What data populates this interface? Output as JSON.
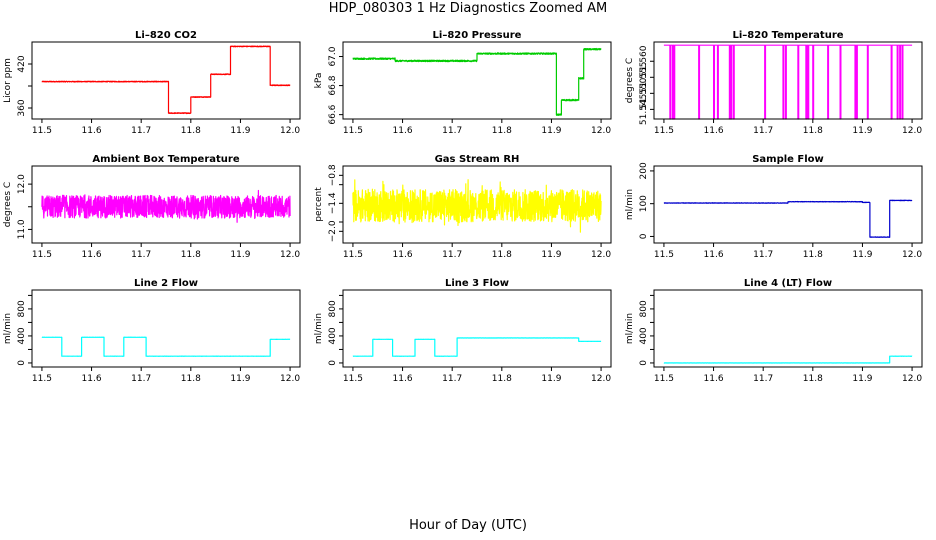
{
  "figure": {
    "title": "HDP_080303  1 Hz Diagnostics Zoomed AM",
    "xlabel": "Hour of Day (UTC)"
  },
  "chart_data": [
    {
      "type": "line",
      "title": "Li–820 CO2",
      "ylabel": "Licor ppm",
      "color": "#ff0000",
      "xlim": [
        11.48,
        12.02
      ],
      "xticks": [
        11.5,
        11.6,
        11.7,
        11.8,
        11.9,
        12.0
      ],
      "ylim": [
        345,
        450
      ],
      "yticks": [
        360,
        390,
        420
      ],
      "ytick_labels": [
        "360",
        "",
        "420"
      ],
      "noise": 0.5,
      "segments": [
        [
          11.5,
          11.755,
          396
        ],
        [
          11.755,
          11.8,
          353
        ],
        [
          11.8,
          11.84,
          375
        ],
        [
          11.84,
          11.88,
          406
        ],
        [
          11.88,
          11.96,
          444
        ],
        [
          11.96,
          12.0,
          391
        ]
      ]
    },
    {
      "type": "line",
      "title": "Li–820 Pressure",
      "ylabel": "kPa",
      "color": "#00cc00",
      "xlim": [
        11.48,
        12.02
      ],
      "xticks": [
        11.5,
        11.6,
        11.7,
        11.8,
        11.9,
        12.0
      ],
      "ylim": [
        66.57,
        67.1
      ],
      "yticks": [
        66.6,
        66.8,
        67.0
      ],
      "ytick_labels": [
        "66.6",
        "66.8",
        "67.0"
      ],
      "noise": 0.005,
      "segments": [
        [
          11.5,
          11.585,
          66.985
        ],
        [
          11.585,
          11.75,
          66.97
        ],
        [
          11.75,
          11.91,
          67.02
        ],
        [
          11.91,
          11.92,
          66.6
        ],
        [
          11.92,
          11.955,
          66.7
        ],
        [
          11.955,
          11.965,
          66.85
        ],
        [
          11.965,
          12.0,
          67.05
        ]
      ]
    },
    {
      "type": "line",
      "title": "Li–820 Temperature",
      "ylabel": "degrees C",
      "color": "#ff00ff",
      "xlim": [
        11.48,
        12.02
      ],
      "xticks": [
        11.5,
        11.6,
        11.7,
        11.8,
        11.9,
        12.0
      ],
      "ylim": [
        51.542,
        51.566
      ],
      "yticks": [
        51.545,
        51.55,
        51.555,
        51.56
      ],
      "ytick_labels": [
        "51.545",
        "51.550",
        "51.555",
        "51.560"
      ],
      "base": 51.565,
      "low": 51.542,
      "spikes": [
        11.512,
        11.517,
        11.52,
        11.57,
        11.6,
        11.608,
        11.632,
        11.635,
        11.64,
        11.703,
        11.74,
        11.745,
        11.77,
        11.786,
        11.79,
        11.8,
        11.83,
        11.855,
        11.885,
        11.888,
        11.91,
        11.958,
        11.97,
        11.975,
        11.98
      ]
    },
    {
      "type": "line",
      "title": "Ambient Box Temperature",
      "ylabel": "degrees C",
      "color": "#ff00ff",
      "xlim": [
        11.48,
        12.02
      ],
      "xticks": [
        11.5,
        11.6,
        11.7,
        11.8,
        11.9,
        12.0
      ],
      "ylim": [
        10.7,
        12.4
      ],
      "yticks": [
        11.0,
        11.5,
        12.0
      ],
      "ytick_labels": [
        "11.0",
        "",
        "12.0"
      ],
      "noise": 0.25,
      "segments": [
        [
          11.5,
          12.0,
          11.5
        ]
      ]
    },
    {
      "type": "line",
      "title": "Gas Stream RH",
      "ylabel": "percent",
      "color": "#ffff00",
      "xlim": [
        11.48,
        12.02
      ],
      "xticks": [
        11.5,
        11.6,
        11.7,
        11.8,
        11.9,
        12.0
      ],
      "ylim": [
        -2.25,
        -0.6
      ],
      "yticks": [
        -2.0,
        -1.8,
        -1.4,
        -1.0,
        -0.8
      ],
      "ytick_labels": [
        "−2.0",
        "",
        "−1.4",
        "",
        "−0.8"
      ],
      "noise": 0.35,
      "segments": [
        [
          11.5,
          12.0,
          -1.45
        ]
      ]
    },
    {
      "type": "line",
      "title": "Sample Flow",
      "ylabel": "ml/min",
      "color": "#0000cc",
      "xlim": [
        11.48,
        12.02
      ],
      "xticks": [
        11.5,
        11.6,
        11.7,
        11.8,
        11.9,
        12.0
      ],
      "ylim": [
        -20,
        215
      ],
      "yticks": [
        0,
        100,
        200
      ],
      "ytick_labels": [
        "0",
        "100",
        "200"
      ],
      "noise": 0.6,
      "segments": [
        [
          11.5,
          11.75,
          102
        ],
        [
          11.75,
          11.9,
          106
        ],
        [
          11.9,
          11.915,
          104
        ],
        [
          11.915,
          11.955,
          -2
        ],
        [
          11.955,
          12.0,
          110
        ]
      ]
    },
    {
      "type": "line",
      "title": "Line 2 Flow",
      "ylabel": "ml/min",
      "color": "#00ffff",
      "xlim": [
        11.48,
        12.02
      ],
      "xticks": [
        11.5,
        11.6,
        11.7,
        11.8,
        11.9,
        12.0
      ],
      "ylim": [
        -60,
        1080
      ],
      "yticks": [
        0,
        200,
        400,
        600,
        800,
        1000
      ],
      "ytick_labels": [
        "0",
        "",
        "400",
        "",
        "800",
        ""
      ],
      "noise": 1,
      "segments": [
        [
          11.5,
          11.54,
          380
        ],
        [
          11.54,
          11.58,
          100
        ],
        [
          11.58,
          11.625,
          380
        ],
        [
          11.625,
          11.665,
          100
        ],
        [
          11.665,
          11.71,
          380
        ],
        [
          11.71,
          11.96,
          100
        ],
        [
          11.96,
          12.0,
          350
        ]
      ]
    },
    {
      "type": "line",
      "title": "Line 3 Flow",
      "ylabel": "ml/min",
      "color": "#00ffff",
      "xlim": [
        11.48,
        12.02
      ],
      "xticks": [
        11.5,
        11.6,
        11.7,
        11.8,
        11.9,
        12.0
      ],
      "ylim": [
        -60,
        1080
      ],
      "yticks": [
        0,
        200,
        400,
        600,
        800,
        1000
      ],
      "ytick_labels": [
        "0",
        "",
        "400",
        "",
        "800",
        ""
      ],
      "noise": 1,
      "segments": [
        [
          11.5,
          11.54,
          100
        ],
        [
          11.54,
          11.58,
          350
        ],
        [
          11.58,
          11.625,
          100
        ],
        [
          11.625,
          11.665,
          350
        ],
        [
          11.665,
          11.71,
          100
        ],
        [
          11.71,
          11.955,
          370
        ],
        [
          11.955,
          12.0,
          320
        ]
      ]
    },
    {
      "type": "line",
      "title": "Line 4 (LT) Flow",
      "ylabel": "ml/min",
      "color": "#00ffff",
      "xlim": [
        11.48,
        12.02
      ],
      "xticks": [
        11.5,
        11.6,
        11.7,
        11.8,
        11.9,
        12.0
      ],
      "ylim": [
        -60,
        1080
      ],
      "yticks": [
        0,
        200,
        400,
        600,
        800,
        1000
      ],
      "ytick_labels": [
        "0",
        "",
        "400",
        "",
        "800",
        ""
      ],
      "noise": 1,
      "segments": [
        [
          11.5,
          11.955,
          0
        ],
        [
          11.955,
          12.0,
          100
        ]
      ]
    }
  ]
}
